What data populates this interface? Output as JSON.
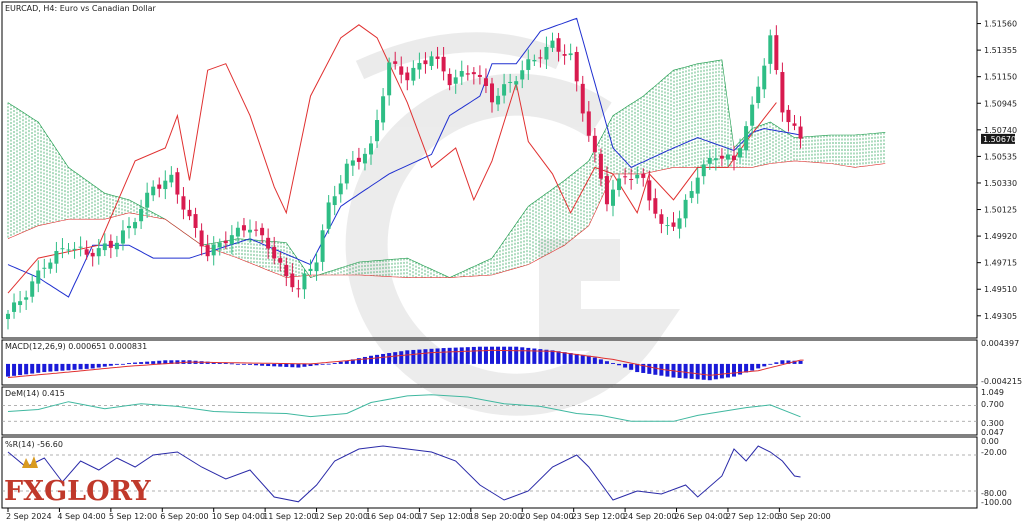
{
  "header": {
    "symbol_line": "EURCAD, H4:  Euro vs Canadian Dollar"
  },
  "price_axis": {
    "labels": [
      "1.51560",
      "1.51355",
      "1.51150",
      "1.50945",
      "1.50740",
      "1.50535",
      "1.50330",
      "1.50125",
      "1.49920",
      "1.49715",
      "1.49510",
      "1.49305"
    ],
    "current_price": "1.50670"
  },
  "time_axis": {
    "labels": [
      "2 Sep 2024",
      "4 Sep 04:00",
      "5 Sep 12:00",
      "6 Sep 20:00",
      "10 Sep 04:00",
      "11 Sep 12:00",
      "12 Sep 20:00",
      "16 Sep 04:00",
      "17 Sep 12:00",
      "18 Sep 20:00",
      "20 Sep 04:00",
      "23 Sep 12:00",
      "24 Sep 20:00",
      "26 Sep 04:00",
      "27 Sep 12:00",
      "30 Sep 20:00"
    ]
  },
  "panels": {
    "macd": {
      "label": "MACD(12,26,9) 0.000651 0.000831",
      "axis_top": "0.004397",
      "axis_bottom": "-0.004215"
    },
    "dem": {
      "label": "DeM(14) 0.415",
      "axis_labels": [
        "1.049",
        "0.700",
        "0.300",
        "0.047"
      ]
    },
    "wpr": {
      "label": "%R(14) -56.60",
      "axis_labels": [
        "0.00",
        "-20.00",
        "-80.00",
        "-100.00"
      ]
    }
  },
  "logo": {
    "text": "FXGLORY"
  },
  "colors": {
    "bull": "#2ebd85",
    "bear": "#d81b4f",
    "tenkan": "#e03030",
    "kijun": "#2030d0",
    "cloud_bull": "#1a9a4a",
    "cloud_bear": "#e03030",
    "macd_hist": "#1a1ad8",
    "macd_signal": "#e03030",
    "dem_line": "#40b8a0",
    "wpr_line": "#2a2aa8"
  },
  "chart_data": [
    {
      "type": "candlestick",
      "title": "EURCAD, H4:  Euro vs Canadian Dollar",
      "ylim": [
        1.4918,
        1.5168
      ],
      "x_count": 132,
      "x_tick_labels": [
        "2 Sep 2024",
        "4 Sep 04:00",
        "5 Sep 12:00",
        "6 Sep 20:00",
        "10 Sep 04:00",
        "11 Sep 12:00",
        "12 Sep 20:00",
        "16 Sep 04:00",
        "17 Sep 12:00",
        "18 Sep 20:00",
        "20 Sep 04:00",
        "23 Sep 12:00",
        "24 Sep 20:00",
        "26 Sep 04:00",
        "27 Sep 12:00",
        "30 Sep 20:00"
      ],
      "close_anchors": [
        [
          0,
          1.4932
        ],
        [
          3,
          1.4948
        ],
        [
          6,
          1.497
        ],
        [
          10,
          1.4985
        ],
        [
          13,
          1.4978
        ],
        [
          17,
          1.4985
        ],
        [
          20,
          1.4998
        ],
        [
          24,
          1.503
        ],
        [
          27,
          1.5036
        ],
        [
          30,
          1.5005
        ],
        [
          33,
          1.4978
        ],
        [
          36,
          1.499
        ],
        [
          40,
          1.5
        ],
        [
          43,
          1.4985
        ],
        [
          46,
          1.496
        ],
        [
          48,
          1.4952
        ],
        [
          51,
          1.4975
        ],
        [
          53,
          1.5015
        ],
        [
          56,
          1.5045
        ],
        [
          60,
          1.506
        ],
        [
          63,
          1.5125
        ],
        [
          66,
          1.5115
        ],
        [
          70,
          1.5132
        ],
        [
          73,
          1.5112
        ],
        [
          77,
          1.512
        ],
        [
          80,
          1.5098
        ],
        [
          83,
          1.511
        ],
        [
          86,
          1.5125
        ],
        [
          90,
          1.514
        ],
        [
          93,
          1.513
        ],
        [
          96,
          1.507
        ],
        [
          99,
          1.502
        ],
        [
          102,
          1.504
        ],
        [
          105,
          1.5035
        ],
        [
          108,
          1.4998
        ],
        [
          111,
          1.5005
        ],
        [
          114,
          1.504
        ],
        [
          117,
          1.5055
        ],
        [
          120,
          1.505
        ],
        [
          123,
          1.509
        ],
        [
          126,
          1.5145
        ],
        [
          128,
          1.509
        ],
        [
          131,
          1.5066
        ]
      ],
      "ichimoku": {
        "tenkan_sen": [
          [
            0,
            1.4948
          ],
          [
            5,
            1.4975
          ],
          [
            15,
            1.4985
          ],
          [
            21,
            1.505
          ],
          [
            26,
            1.506
          ],
          [
            28,
            1.5085
          ],
          [
            30,
            1.5035
          ],
          [
            33,
            1.512
          ],
          [
            36,
            1.5125
          ],
          [
            40,
            1.5085
          ],
          [
            44,
            1.503
          ],
          [
            46,
            1.501
          ],
          [
            50,
            1.51
          ],
          [
            55,
            1.5145
          ],
          [
            58,
            1.5155
          ],
          [
            61,
            1.5145
          ],
          [
            66,
            1.5095
          ],
          [
            70,
            1.5045
          ],
          [
            74,
            1.506
          ],
          [
            77,
            1.502
          ],
          [
            80,
            1.505
          ],
          [
            84,
            1.511
          ],
          [
            86,
            1.5065
          ],
          [
            90,
            1.504
          ],
          [
            93,
            1.501
          ],
          [
            97,
            1.5045
          ],
          [
            100,
            1.504
          ],
          [
            104,
            1.501
          ],
          [
            106,
            1.504
          ],
          [
            110,
            1.502
          ],
          [
            114,
            1.5045
          ],
          [
            119,
            1.5045
          ],
          [
            122,
            1.5065
          ],
          [
            127,
            1.5095
          ]
        ],
        "kijun_sen": [
          [
            0,
            1.497
          ],
          [
            5,
            1.496
          ],
          [
            10,
            1.4945
          ],
          [
            14,
            1.4985
          ],
          [
            20,
            1.4985
          ],
          [
            24,
            1.4975
          ],
          [
            30,
            1.4975
          ],
          [
            40,
            1.499
          ],
          [
            50,
            1.497
          ],
          [
            55,
            1.5015
          ],
          [
            63,
            1.504
          ],
          [
            70,
            1.5055
          ],
          [
            73,
            1.5085
          ],
          [
            78,
            1.51
          ],
          [
            80,
            1.5125
          ],
          [
            84,
            1.5125
          ],
          [
            88,
            1.515
          ],
          [
            94,
            1.516
          ],
          [
            100,
            1.506
          ],
          [
            103,
            1.5045
          ],
          [
            110,
            1.506
          ],
          [
            114,
            1.5068
          ],
          [
            120,
            1.5058
          ],
          [
            123,
            1.5072
          ],
          [
            125,
            1.5075
          ],
          [
            131,
            1.507
          ]
        ],
        "senkou_a": [
          [
            0,
            1.5095
          ],
          [
            5,
            1.508
          ],
          [
            10,
            1.5045
          ],
          [
            16,
            1.5025
          ],
          [
            20,
            1.502
          ],
          [
            26,
            1.5005
          ],
          [
            32,
            1.4985
          ],
          [
            38,
            1.499
          ],
          [
            46,
            1.4987
          ],
          [
            50,
            1.496
          ],
          [
            58,
            1.4972
          ],
          [
            66,
            1.4975
          ],
          [
            73,
            1.496
          ],
          [
            80,
            1.4975
          ],
          [
            86,
            1.5015
          ],
          [
            92,
            1.5035
          ],
          [
            96,
            1.505
          ],
          [
            100,
            1.5085
          ],
          [
            105,
            1.51
          ],
          [
            110,
            1.512
          ],
          [
            114,
            1.5125
          ],
          [
            118,
            1.5128
          ],
          [
            120,
            1.506
          ],
          [
            123,
            1.5075
          ],
          [
            126,
            1.508
          ],
          [
            130,
            1.5068
          ],
          [
            136,
            1.507
          ],
          [
            140,
            1.507
          ],
          [
            145,
            1.5072
          ]
        ],
        "senkou_b": [
          [
            0,
            1.499
          ],
          [
            5,
            1.5
          ],
          [
            10,
            1.5005
          ],
          [
            16,
            1.5005
          ],
          [
            20,
            1.501
          ],
          [
            26,
            1.5005
          ],
          [
            32,
            1.4985
          ],
          [
            38,
            1.4975
          ],
          [
            46,
            1.496
          ],
          [
            50,
            1.4962
          ],
          [
            58,
            1.4962
          ],
          [
            66,
            1.496
          ],
          [
            73,
            1.496
          ],
          [
            80,
            1.4962
          ],
          [
            86,
            1.497
          ],
          [
            92,
            1.4985
          ],
          [
            96,
            1.5
          ],
          [
            100,
            1.504
          ],
          [
            105,
            1.504
          ],
          [
            110,
            1.5045
          ],
          [
            114,
            1.5045
          ],
          [
            118,
            1.5045
          ],
          [
            120,
            1.5045
          ],
          [
            123,
            1.5045
          ],
          [
            126,
            1.5048
          ],
          [
            130,
            1.505
          ],
          [
            136,
            1.5048
          ],
          [
            140,
            1.5045
          ],
          [
            145,
            1.5048
          ]
        ]
      }
    },
    {
      "type": "bar",
      "title": "MACD(12,26,9) 0.000651 0.000831",
      "ylim": [
        -0.004215,
        0.004397
      ],
      "x_count": 132,
      "histogram_anchors": [
        [
          0,
          -0.0028
        ],
        [
          6,
          -0.0018
        ],
        [
          14,
          -0.001
        ],
        [
          20,
          0.0002
        ],
        [
          26,
          0.0008
        ],
        [
          30,
          0.0008
        ],
        [
          36,
          0.0002
        ],
        [
          42,
          -0.0004
        ],
        [
          48,
          -0.0008
        ],
        [
          54,
          0.0002
        ],
        [
          60,
          0.0018
        ],
        [
          66,
          0.003
        ],
        [
          72,
          0.0035
        ],
        [
          78,
          0.0038
        ],
        [
          84,
          0.0038
        ],
        [
          90,
          0.003
        ],
        [
          96,
          0.0018
        ],
        [
          100,
          0.0002
        ],
        [
          104,
          -0.0018
        ],
        [
          110,
          -0.003
        ],
        [
          116,
          -0.0036
        ],
        [
          120,
          -0.0028
        ],
        [
          124,
          -0.001
        ],
        [
          128,
          0.0008
        ],
        [
          131,
          0.000651
        ]
      ],
      "signal_anchors": [
        [
          0,
          -0.003
        ],
        [
          10,
          -0.0018
        ],
        [
          20,
          -0.0005
        ],
        [
          30,
          0.0004
        ],
        [
          40,
          0.0002
        ],
        [
          50,
          0.0
        ],
        [
          60,
          0.0012
        ],
        [
          70,
          0.0025
        ],
        [
          80,
          0.003
        ],
        [
          90,
          0.0028
        ],
        [
          100,
          0.001
        ],
        [
          108,
          -0.0012
        ],
        [
          116,
          -0.0025
        ],
        [
          124,
          -0.0015
        ],
        [
          131,
          0.000831
        ]
      ]
    },
    {
      "type": "line",
      "title": "DeM(14) 0.415",
      "ylim": [
        0.0,
        1.1
      ],
      "x_count": 132,
      "series": [
        {
          "points": [
            [
              0,
              0.55
            ],
            [
              5,
              0.6
            ],
            [
              10,
              0.8
            ],
            [
              16,
              0.62
            ],
            [
              22,
              0.75
            ],
            [
              28,
              0.68
            ],
            [
              34,
              0.55
            ],
            [
              40,
              0.52
            ],
            [
              46,
              0.5
            ],
            [
              50,
              0.42
            ],
            [
              56,
              0.5
            ],
            [
              60,
              0.78
            ],
            [
              66,
              0.95
            ],
            [
              70,
              0.98
            ],
            [
              76,
              0.92
            ],
            [
              82,
              0.75
            ],
            [
              88,
              0.68
            ],
            [
              94,
              0.5
            ],
            [
              98,
              0.45
            ],
            [
              103,
              0.3
            ],
            [
              110,
              0.3
            ],
            [
              114,
              0.45
            ],
            [
              118,
              0.55
            ],
            [
              122,
              0.65
            ],
            [
              126,
              0.72
            ],
            [
              131,
              0.415
            ]
          ]
        }
      ]
    },
    {
      "type": "line",
      "title": "%R(14) -56.60",
      "ylim": [
        -105,
        5
      ],
      "x_count": 132,
      "series": [
        {
          "points": [
            [
              0,
              -15
            ],
            [
              3,
              -40
            ],
            [
              6,
              -25
            ],
            [
              9,
              -65
            ],
            [
              12,
              -30
            ],
            [
              15,
              -45
            ],
            [
              18,
              -25
            ],
            [
              21,
              -40
            ],
            [
              24,
              -20
            ],
            [
              28,
              -15
            ],
            [
              32,
              -40
            ],
            [
              36,
              -60
            ],
            [
              40,
              -45
            ],
            [
              44,
              -90
            ],
            [
              48,
              -98
            ],
            [
              51,
              -70
            ],
            [
              54,
              -30
            ],
            [
              58,
              -10
            ],
            [
              62,
              -5
            ],
            [
              66,
              -10
            ],
            [
              70,
              -15
            ],
            [
              74,
              -30
            ],
            [
              78,
              -70
            ],
            [
              82,
              -95
            ],
            [
              86,
              -80
            ],
            [
              90,
              -40
            ],
            [
              94,
              -20
            ],
            [
              96,
              -40
            ],
            [
              100,
              -95
            ],
            [
              104,
              -80
            ],
            [
              108,
              -85
            ],
            [
              112,
              -70
            ],
            [
              114,
              -90
            ],
            [
              118,
              -55
            ],
            [
              120,
              -10
            ],
            [
              122,
              -30
            ],
            [
              124,
              -5
            ],
            [
              126,
              -15
            ],
            [
              128,
              -30
            ],
            [
              130,
              -55
            ],
            [
              131,
              -56.6
            ]
          ]
        }
      ]
    }
  ]
}
